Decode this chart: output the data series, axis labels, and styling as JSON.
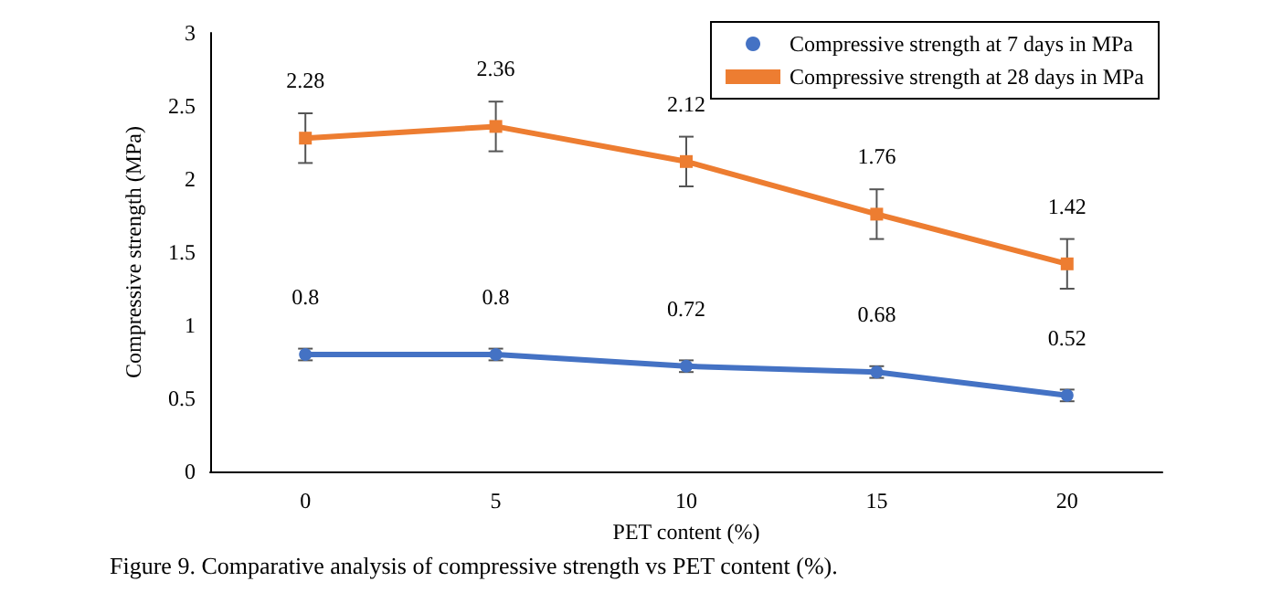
{
  "chart_data": {
    "type": "line",
    "xlabel": "PET content (%)",
    "ylabel": "Compressive strength (MPa)",
    "categories": [
      "0",
      "5",
      "10",
      "15",
      "20"
    ],
    "series": [
      {
        "name": "Compressive strength at 7 days in MPa",
        "color": "#4472c4",
        "marker": "circle",
        "values": [
          0.8,
          0.8,
          0.72,
          0.68,
          0.52
        ],
        "errors": [
          0.04,
          0.04,
          0.04,
          0.04,
          0.04
        ]
      },
      {
        "name": "Compressive strength at 28 days in MPa",
        "color": "#ed7d31",
        "marker": "square",
        "values": [
          2.28,
          2.36,
          2.12,
          1.76,
          1.42
        ],
        "errors": [
          0.17,
          0.17,
          0.17,
          0.17,
          0.17
        ]
      }
    ],
    "ylim": [
      0,
      3
    ],
    "yticks": [
      0,
      0.5,
      1,
      1.5,
      2,
      2.5,
      3
    ],
    "grid": false,
    "legend": "top right",
    "data_labels": true,
    "line_style": "solid",
    "annotations": [
      "Figure 9. Comparative analysis of compressive strength vs PET content (%)."
    ]
  }
}
